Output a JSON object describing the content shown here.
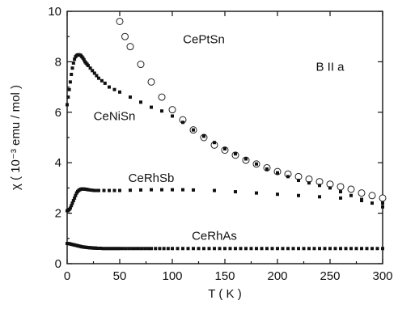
{
  "chart_data": {
    "type": "scatter",
    "title": "",
    "xlabel": "T ( K )",
    "ylabel": "χ  ( 10⁻³ emu / mol )",
    "xlim": [
      0,
      300
    ],
    "ylim": [
      0,
      10
    ],
    "xticks": [
      0,
      50,
      100,
      150,
      200,
      250,
      300
    ],
    "yticks": [
      0,
      2,
      4,
      6,
      8,
      10
    ],
    "grid": false,
    "annotation": "B II a",
    "series": [
      {
        "name": "CePtSn",
        "marker": "open-circle",
        "x": [
          50,
          55,
          60,
          70,
          80,
          90,
          100,
          110,
          120,
          130,
          140,
          150,
          160,
          170,
          180,
          190,
          200,
          210,
          220,
          230,
          240,
          250,
          260,
          270,
          280,
          290,
          300
        ],
        "y": [
          9.6,
          9.0,
          8.6,
          7.9,
          7.2,
          6.6,
          6.1,
          5.7,
          5.3,
          5.0,
          4.7,
          4.5,
          4.3,
          4.1,
          3.95,
          3.8,
          3.65,
          3.55,
          3.45,
          3.35,
          3.25,
          3.15,
          3.05,
          2.95,
          2.8,
          2.7,
          2.6
        ]
      },
      {
        "name": "CeNiSn",
        "marker": "filled-square",
        "x": [
          0,
          1,
          2,
          3,
          4,
          5,
          6,
          7,
          8,
          9,
          10,
          11,
          12,
          13,
          14,
          15,
          16,
          17,
          18,
          19,
          20,
          22,
          24,
          26,
          28,
          30,
          33,
          36,
          40,
          45,
          50,
          60,
          70,
          80,
          90,
          100,
          110,
          120,
          130,
          140,
          150,
          160,
          170,
          180,
          190,
          200,
          210,
          220,
          230,
          240,
          250,
          260,
          270,
          280,
          290,
          300
        ],
        "y": [
          6.3,
          6.6,
          6.9,
          7.2,
          7.5,
          7.75,
          7.95,
          8.1,
          8.2,
          8.25,
          8.27,
          8.28,
          8.27,
          8.25,
          8.2,
          8.15,
          8.08,
          8.0,
          7.95,
          7.9,
          7.85,
          7.75,
          7.65,
          7.55,
          7.45,
          7.35,
          7.25,
          7.15,
          7.0,
          6.9,
          6.8,
          6.6,
          6.4,
          6.2,
          6.05,
          5.85,
          5.6,
          5.3,
          5.05,
          4.8,
          4.55,
          4.35,
          4.15,
          3.95,
          3.75,
          3.6,
          3.45,
          3.3,
          3.2,
          3.1,
          3.0,
          2.85,
          2.7,
          2.55,
          2.4,
          2.25
        ]
      },
      {
        "name": "CeRhSb",
        "marker": "filled-square",
        "x": [
          0,
          1,
          2,
          3,
          4,
          5,
          6,
          7,
          8,
          9,
          10,
          11,
          12,
          13,
          14,
          15,
          16,
          17,
          18,
          19,
          20,
          22,
          24,
          26,
          28,
          30,
          35,
          40,
          45,
          50,
          60,
          70,
          80,
          90,
          100,
          110,
          120,
          140,
          160,
          180,
          200,
          220,
          240,
          260,
          280,
          300
        ],
        "y": [
          2.1,
          2.1,
          2.15,
          2.2,
          2.3,
          2.4,
          2.5,
          2.6,
          2.7,
          2.8,
          2.86,
          2.9,
          2.93,
          2.95,
          2.96,
          2.96,
          2.96,
          2.95,
          2.95,
          2.94,
          2.93,
          2.92,
          2.91,
          2.9,
          2.9,
          2.9,
          2.9,
          2.9,
          2.9,
          2.9,
          2.91,
          2.92,
          2.93,
          2.93,
          2.93,
          2.93,
          2.92,
          2.9,
          2.85,
          2.8,
          2.75,
          2.7,
          2.65,
          2.6,
          2.5,
          2.4
        ]
      },
      {
        "name": "CeRhAs",
        "marker": "filled-square",
        "x": [
          0,
          1,
          2,
          3,
          4,
          5,
          6,
          7,
          8,
          9,
          10,
          11,
          12,
          13,
          14,
          15,
          16,
          17,
          18,
          19,
          20,
          21,
          22,
          23,
          24,
          25,
          26,
          27,
          28,
          29,
          30,
          32,
          34,
          36,
          38,
          40,
          42,
          44,
          46,
          48,
          50,
          53,
          56,
          59,
          62,
          65,
          68,
          71,
          74,
          77,
          80,
          84,
          88,
          92,
          96,
          100,
          105,
          110,
          115,
          120,
          125,
          130,
          135,
          140,
          145,
          150,
          155,
          160,
          165,
          170,
          175,
          180,
          185,
          190,
          195,
          200,
          205,
          210,
          215,
          220,
          225,
          230,
          235,
          240,
          245,
          250,
          255,
          260,
          265,
          270,
          275,
          280,
          285,
          290,
          295,
          300
        ],
        "y": [
          0.8,
          0.8,
          0.79,
          0.78,
          0.77,
          0.76,
          0.75,
          0.74,
          0.73,
          0.72,
          0.71,
          0.7,
          0.69,
          0.68,
          0.67,
          0.66,
          0.66,
          0.65,
          0.65,
          0.64,
          0.64,
          0.63,
          0.63,
          0.63,
          0.62,
          0.62,
          0.62,
          0.62,
          0.61,
          0.61,
          0.61,
          0.61,
          0.6,
          0.6,
          0.6,
          0.6,
          0.6,
          0.6,
          0.6,
          0.6,
          0.6,
          0.6,
          0.6,
          0.6,
          0.6,
          0.6,
          0.6,
          0.6,
          0.6,
          0.6,
          0.6,
          0.6,
          0.6,
          0.6,
          0.6,
          0.6,
          0.6,
          0.6,
          0.6,
          0.6,
          0.6,
          0.6,
          0.6,
          0.6,
          0.6,
          0.6,
          0.6,
          0.6,
          0.6,
          0.6,
          0.6,
          0.6,
          0.6,
          0.6,
          0.6,
          0.6,
          0.6,
          0.6,
          0.6,
          0.6,
          0.6,
          0.6,
          0.6,
          0.6,
          0.6,
          0.6,
          0.6,
          0.6,
          0.6,
          0.6,
          0.6,
          0.6,
          0.6,
          0.6,
          0.6,
          0.6
        ]
      }
    ],
    "series_labels": [
      {
        "series": "CePtSn",
        "at": [
          130,
          8.9
        ]
      },
      {
        "series": "CeNiSn",
        "at": [
          45,
          5.85
        ]
      },
      {
        "series": "CeRhSb",
        "at": [
          80,
          3.4
        ]
      },
      {
        "series": "CeRhAs",
        "at": [
          140,
          1.1
        ]
      }
    ],
    "annotation_at": [
      250,
      7.8
    ]
  }
}
